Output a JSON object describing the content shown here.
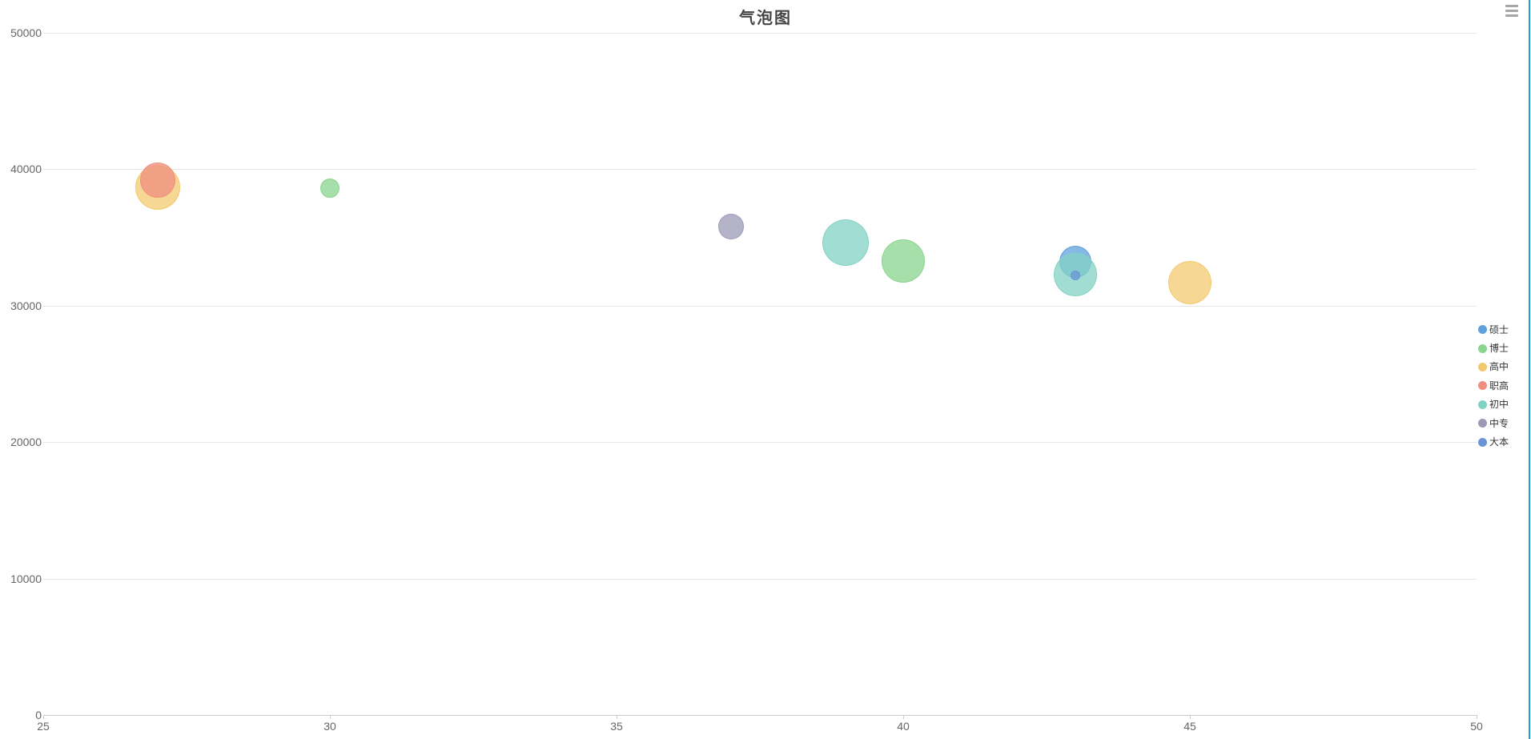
{
  "chart_data": {
    "type": "bubble",
    "title": "气泡图",
    "x_axis": {
      "min": 25,
      "max": 50,
      "ticks": [
        25,
        30,
        35,
        40,
        45,
        50
      ]
    },
    "y_axis": {
      "min": 0,
      "max": 50000,
      "ticks": [
        0,
        10000,
        20000,
        30000,
        40000,
        50000
      ]
    },
    "grid": "horizontal-only",
    "legend_position": "right",
    "series": [
      {
        "name": "硕士",
        "color": "#5ea1da",
        "points": [
          {
            "x": 43,
            "y": 33200,
            "r": 20
          }
        ]
      },
      {
        "name": "博士",
        "color": "#8ad48e",
        "points": [
          {
            "x": 30,
            "y": 38600,
            "r": 12
          },
          {
            "x": 40,
            "y": 33300,
            "r": 27
          }
        ]
      },
      {
        "name": "高中",
        "color": "#f3c96f",
        "points": [
          {
            "x": 27,
            "y": 38700,
            "r": 28
          },
          {
            "x": 45,
            "y": 31700,
            "r": 27
          }
        ]
      },
      {
        "name": "职高",
        "color": "#ef8d80",
        "points": [
          {
            "x": 27,
            "y": 39200,
            "r": 22
          }
        ]
      },
      {
        "name": "初中",
        "color": "#82d2c4",
        "points": [
          {
            "x": 39,
            "y": 34650,
            "r": 29
          },
          {
            "x": 43,
            "y": 32300,
            "r": 27
          }
        ]
      },
      {
        "name": "中专",
        "color": "#9b99b5",
        "points": [
          {
            "x": 37,
            "y": 35800,
            "r": 16
          }
        ]
      },
      {
        "name": "大本",
        "color": "#6b94d6",
        "points": [
          {
            "x": 43,
            "y": 32200,
            "r": 6
          }
        ]
      }
    ]
  },
  "style": {
    "background": "#ffffff",
    "title_color": "#464646",
    "axis_label_color": "#666666",
    "axis_line_color": "#cccccc",
    "grid_line_color": "#e6e6e6",
    "legend_text_color": "#333333",
    "menu_icon_color": "#a6a6a6",
    "pane_divider_color": "#18a3dd",
    "bubble_fill_opacity": 0.75
  },
  "icons": {
    "context_menu": "hamburger-menu-icon"
  }
}
